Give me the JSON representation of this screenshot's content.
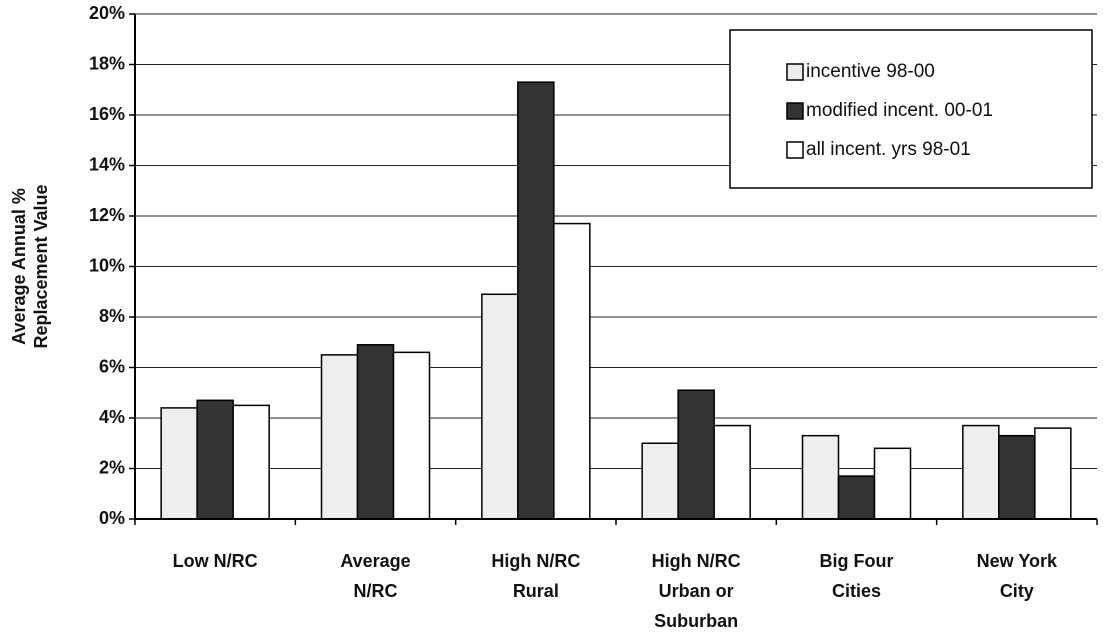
{
  "chart_data": {
    "type": "bar",
    "y_label": [
      "Average Annual %",
      "Replacement Value"
    ],
    "categories": [
      [
        "Low N/RC"
      ],
      [
        "Average",
        "N/RC"
      ],
      [
        "High N/RC",
        "Rural"
      ],
      [
        "High N/RC",
        "Urban or",
        "Suburban"
      ],
      [
        "Big Four",
        "Cities"
      ],
      [
        "New York",
        "City"
      ]
    ],
    "series": [
      {
        "name": "incentive 98-00",
        "color": "#eeeeee",
        "values": [
          4.4,
          6.5,
          8.9,
          3.0,
          3.3,
          3.7
        ]
      },
      {
        "name": "modified incent. 00-01",
        "color": "#333333",
        "values": [
          4.7,
          6.9,
          17.3,
          5.1,
          1.7,
          3.3
        ]
      },
      {
        "name": "all incent. yrs 98-01",
        "color": "#ffffff",
        "values": [
          4.5,
          6.6,
          11.7,
          3.7,
          2.8,
          3.6
        ]
      }
    ],
    "ylim": [
      0,
      20
    ],
    "yticks": [
      {
        "value": 0,
        "label": "0%"
      },
      {
        "value": 2,
        "label": "2%"
      },
      {
        "value": 4,
        "label": "4%"
      },
      {
        "value": 6,
        "label": "6%"
      },
      {
        "value": 8,
        "label": "8%"
      },
      {
        "value": 10,
        "label": "10%"
      },
      {
        "value": 12,
        "label": "12%"
      },
      {
        "value": 14,
        "label": "14%"
      },
      {
        "value": 16,
        "label": "16%"
      },
      {
        "value": 18,
        "label": "18%"
      },
      {
        "value": 20,
        "label": "20%"
      }
    ],
    "grid": true,
    "legend": "upper right"
  }
}
